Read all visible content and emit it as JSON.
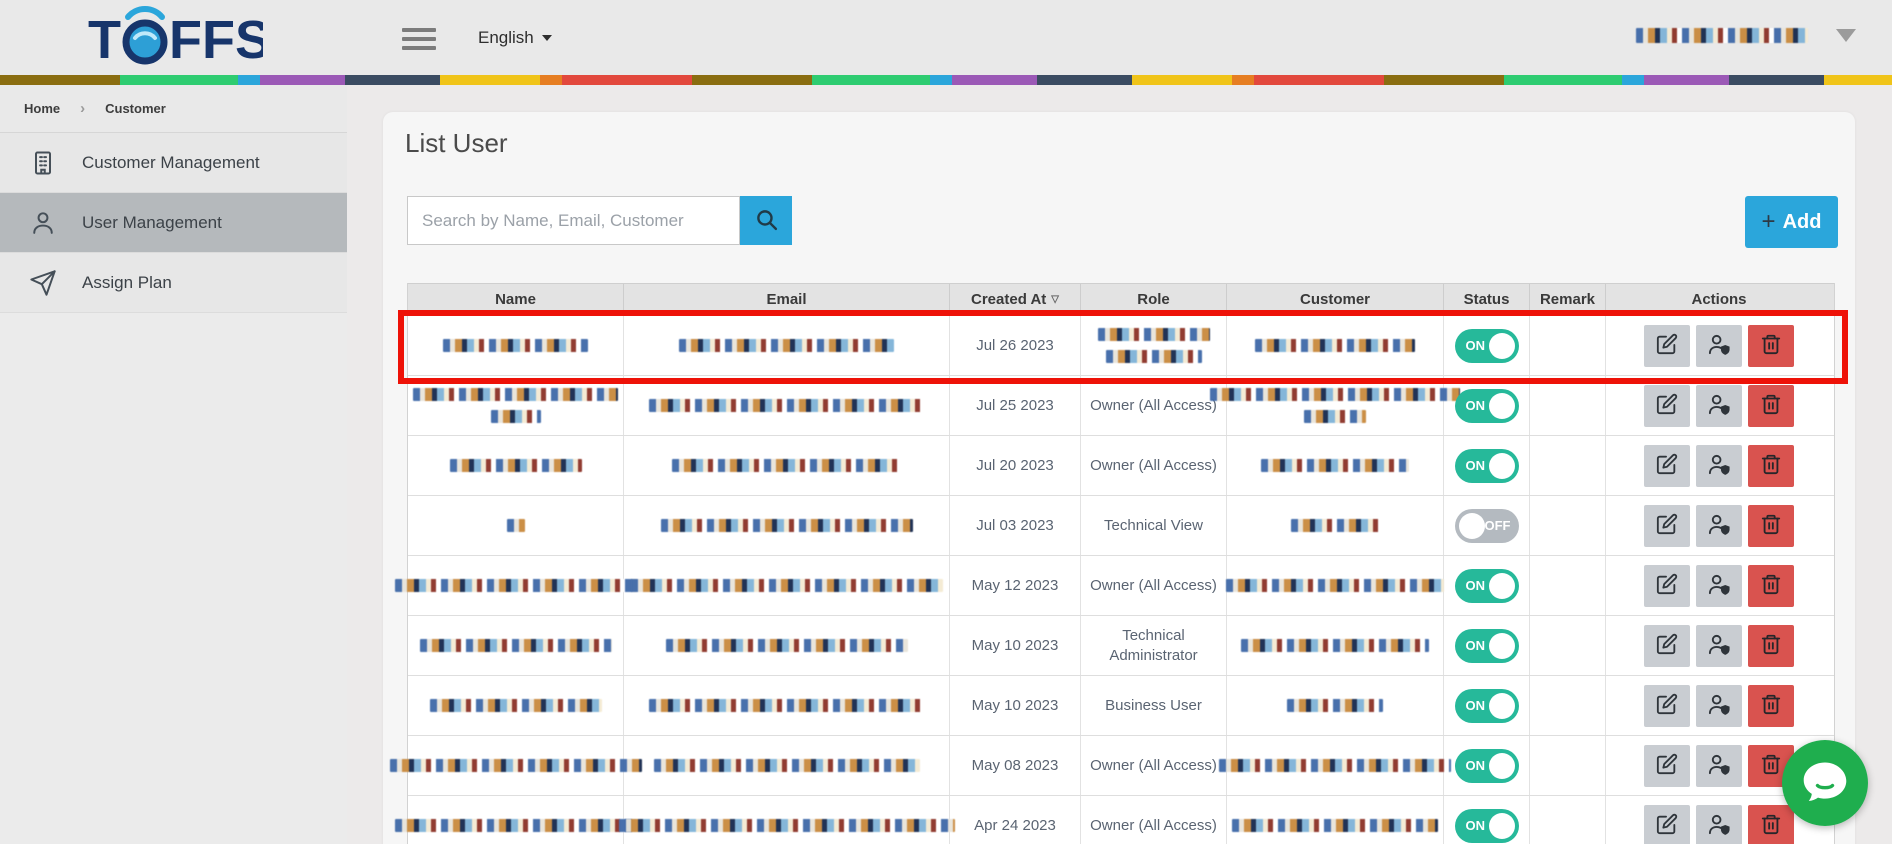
{
  "topbar": {
    "logo": {
      "t": "T",
      "ffs": "FFS"
    },
    "language": {
      "label": "English"
    },
    "user": {
      "redacted": true
    }
  },
  "breadcrumb": {
    "home": "Home",
    "separator": "›",
    "current": "Customer"
  },
  "sidebar": {
    "items": [
      {
        "label": "Customer Management",
        "icon": "building-icon",
        "active": false
      },
      {
        "label": "User Management",
        "icon": "person-icon",
        "active": true
      },
      {
        "label": "Assign Plan",
        "icon": "paper-plane-icon",
        "active": false
      }
    ]
  },
  "main": {
    "title": "List User",
    "search": {
      "placeholder": "Search by Name, Email, Customer",
      "value": ""
    },
    "add_button": {
      "plus": "+",
      "label": "Add"
    },
    "table": {
      "columns": [
        {
          "label": "Name"
        },
        {
          "label": "Email"
        },
        {
          "label": "Created At",
          "sort_icon": "sort-down-icon",
          "sort_glyph": "▽"
        },
        {
          "label": "Role"
        },
        {
          "label": "Customer"
        },
        {
          "label": "Status"
        },
        {
          "label": "Remark"
        },
        {
          "label": "Actions"
        }
      ],
      "action_buttons": [
        {
          "name": "edit",
          "icon": "edit-icon",
          "style": "gray"
        },
        {
          "name": "assign-role",
          "icon": "person-shield-icon",
          "style": "gray"
        },
        {
          "name": "delete",
          "icon": "trash-icon",
          "style": "red"
        }
      ],
      "rows": [
        {
          "created_at": "Jul 26 2023",
          "role": null,
          "status": "ON",
          "remark": "",
          "highlighted": true,
          "redacted": {
            "name": [
              145
            ],
            "email": [
              215
            ],
            "role": [
              112,
              96
            ],
            "customer": [
              160
            ]
          }
        },
        {
          "created_at": "Jul 25 2023",
          "role": "Owner (All Access)",
          "status": "ON",
          "remark": "",
          "redacted": {
            "name": [
              205,
              50
            ],
            "email": [
              275
            ],
            "customer": [
              250,
              62
            ]
          }
        },
        {
          "created_at": "Jul 20 2023",
          "role": "Owner (All Access)",
          "status": "ON",
          "remark": "",
          "redacted": {
            "name": [
              132
            ],
            "email": [
              230
            ],
            "customer": [
              148
            ]
          }
        },
        {
          "created_at": "Jul 03 2023",
          "role": "Technical View",
          "status": "OFF",
          "remark": "",
          "redacted": {
            "name": [
              18
            ],
            "email": [
              252
            ],
            "customer": [
              88
            ]
          }
        },
        {
          "created_at": "May 12 2023",
          "role": "Owner (All Access)",
          "status": "ON",
          "remark": "",
          "redacted": {
            "name": [
              242
            ],
            "email": [
              312
            ],
            "customer": [
              218
            ]
          }
        },
        {
          "created_at": "May 10 2023",
          "role": "Technical Administrator",
          "status": "ON",
          "remark": "",
          "redacted": {
            "name": [
              192
            ],
            "email": [
              242
            ],
            "customer": [
              188
            ]
          }
        },
        {
          "created_at": "May 10 2023",
          "role": "Business User",
          "status": "ON",
          "remark": "",
          "redacted": {
            "name": [
              172
            ],
            "email": [
              276
            ],
            "customer": [
              96
            ]
          }
        },
        {
          "created_at": "May 08 2023",
          "role": "Owner (All Access)",
          "status": "ON",
          "remark": "",
          "redacted": {
            "name": [
              252
            ],
            "email": [
              266
            ],
            "customer": [
              232
            ]
          }
        },
        {
          "created_at": "Apr 24 2023",
          "role": "Owner (All Access)",
          "status": "ON",
          "remark": "",
          "redacted": {
            "name": [
              242
            ],
            "email": [
              336
            ],
            "customer": [
              206
            ]
          }
        }
      ]
    }
  },
  "chat_widget": {
    "icon": "chat-bubble-icon"
  },
  "colors": {
    "accent_blue": "#2BA6DB",
    "toggle_on_teal": "#26B99A",
    "danger_red": "#D9534F",
    "highlight_red": "#EE1208",
    "chat_green": "#1FAE4E"
  }
}
